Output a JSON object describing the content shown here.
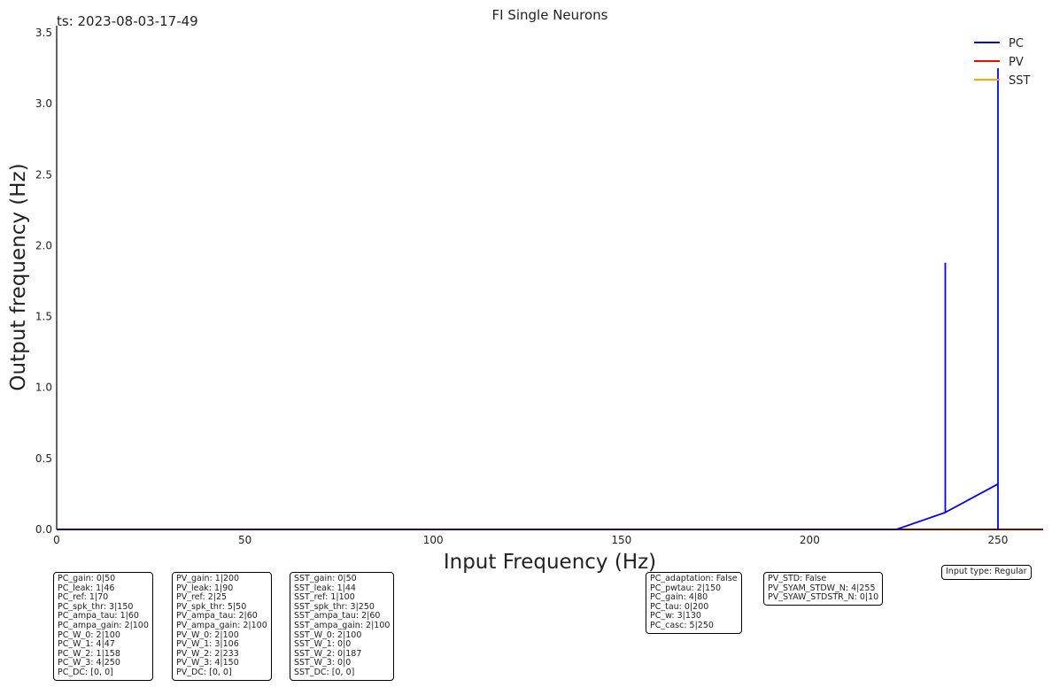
{
  "chart_data": {
    "type": "line",
    "title": "FI Single Neurons",
    "timestamp": "ts: 2023-08-03-17-49",
    "xlabel": "Input Frequency (Hz)",
    "ylabel": "Output frequency (Hz)",
    "xlim": [
      0,
      262
    ],
    "ylim": [
      0,
      3.55
    ],
    "xticks": [
      0,
      50,
      100,
      150,
      200,
      250
    ],
    "yticks": [
      0.0,
      0.5,
      1.0,
      1.5,
      2.0,
      2.5,
      3.0,
      3.5
    ],
    "xtick_labels": [
      "0",
      "50",
      "100",
      "150",
      "200",
      "250"
    ],
    "ytick_labels": [
      "0.0",
      "0.5",
      "1.0",
      "1.5",
      "2.0",
      "2.5",
      "3.0",
      "3.5"
    ],
    "grid": false,
    "legend_position": "top-right",
    "series": [
      {
        "name": "PC",
        "color": "#0000ff",
        "x": [
          0,
          223,
          236,
          236,
          236,
          250,
          250,
          250
        ],
        "y": [
          0,
          0,
          0.12,
          1.88,
          0.12,
          0.32,
          3.25,
          0
        ]
      },
      {
        "name": "PV",
        "color": "#ff0000",
        "x": [
          0,
          262
        ],
        "y": [
          0,
          0
        ]
      },
      {
        "name": "SST",
        "color": "#ffa500",
        "x": [
          0,
          262
        ],
        "y": [
          0,
          0
        ]
      }
    ]
  },
  "param_boxes": [
    {
      "lines": [
        "PC_gain: 0|50",
        "PC_leak: 1|46",
        "PC_ref: 1|70",
        "PC_spk_thr: 3|150",
        "PC_ampa_tau: 1|60",
        "PC_ampa_gain: 2|100",
        "PC_W_0: 2|100",
        "PC_W_1: 4|47",
        "PC_W_2: 1|158",
        "PC_W_3: 4|250",
        "PC_DC: [0, 0]"
      ]
    },
    {
      "lines": [
        "PV_gain: 1|200",
        "PV_leak: 1|90",
        "PV_ref: 2|25",
        "PV_spk_thr: 5|50",
        "PV_ampa_tau: 2|60",
        "PV_ampa_gain: 2|100",
        "PV_W_0: 2|100",
        "PV_W_1: 3|106",
        "PV_W_2: 2|233",
        "PV_W_3: 4|150",
        "PV_DC: [0, 0]"
      ]
    },
    {
      "lines": [
        "SST_gain: 0|50",
        "SST_leak: 1|44",
        "SST_ref: 1|100",
        "SST_spk_thr: 3|250",
        "SST_ampa_tau: 2|60",
        "SST_ampa_gain: 2|100",
        "SST_W_0: 2|100",
        "SST_W_1: 0|0",
        "SST_W_2: 0|187",
        "SST_W_3: 0|0",
        "SST_DC: [0, 0]"
      ]
    },
    {
      "lines": [
        "PC_adaptation: False",
        "PC_pwtau: 2|150",
        "PC_gain: 4|80",
        "PC_tau: 0|200",
        "PC_w: 3|130",
        "PC_casc: 5|250"
      ]
    },
    {
      "lines": [
        "PV_STD: False",
        "PV_SYAM_STDW_N: 4|255",
        "PV_SYAW_STDSTR_N: 0|10"
      ]
    },
    {
      "lines": [
        "Input type: Regular"
      ]
    }
  ]
}
